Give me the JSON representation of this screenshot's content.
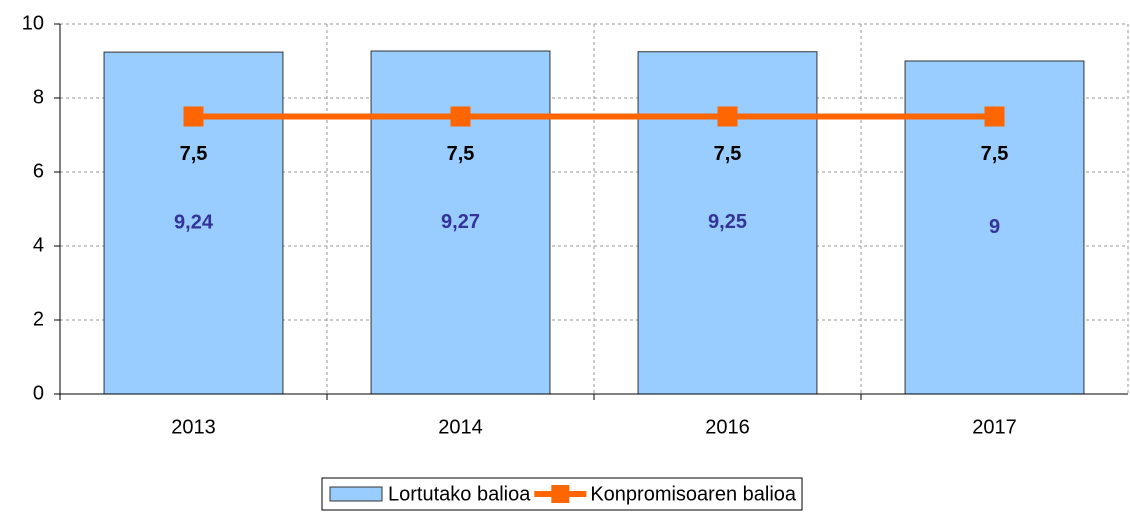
{
  "chart_data": {
    "type": "bar",
    "categories": [
      "2013",
      "2014",
      "2016",
      "2017"
    ],
    "series": [
      {
        "name": "Lortutako balioa",
        "type": "bar",
        "color": "#99ccff",
        "values": [
          9.24,
          9.27,
          9.25,
          9
        ],
        "value_labels": [
          "9,24",
          "9,27",
          "9,25",
          "9"
        ]
      },
      {
        "name": "Konpromisoaren balioa",
        "type": "line",
        "color": "#ff6600",
        "values": [
          7.5,
          7.5,
          7.5,
          7.5
        ],
        "value_labels": [
          "7,5",
          "7,5",
          "7,5",
          "7,5"
        ]
      }
    ],
    "ylim": [
      0,
      10
    ],
    "yticks": [
      0,
      2,
      4,
      6,
      8,
      10
    ],
    "grid": true,
    "legend": "bottom"
  }
}
